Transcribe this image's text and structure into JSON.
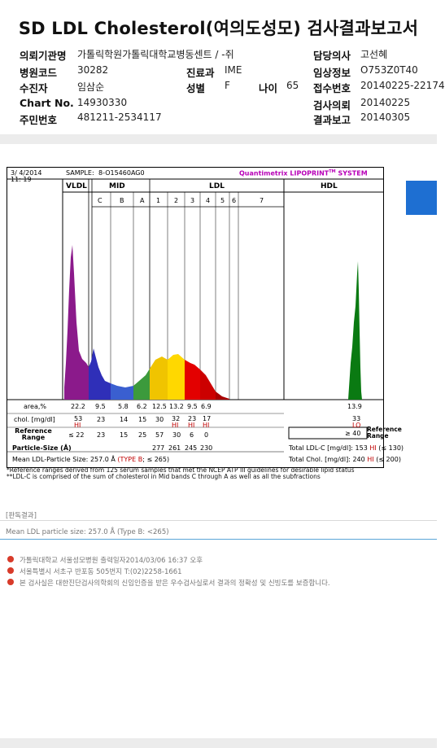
{
  "header": {
    "title": "SD LDL Cholesterol(여의도성모) 검사결과보고서",
    "fields": {
      "institution_label": "의뢰기관명",
      "institution_value": "가톨릭학원가톨릭대학교병동센트 / -쥐",
      "hospital_code_label": "병원코드",
      "hospital_code_value": "30282",
      "department_label": "진료과",
      "department_value": "IME",
      "patient_label": "수진자",
      "patient_value": "임삼순",
      "sex_label": "성별",
      "sex_value": "F",
      "age_label": "나이",
      "age_value": "65",
      "chart_label": "Chart No.",
      "chart_value": "14930330",
      "id_label": "주민번호",
      "id_value": "481211-2534117",
      "doctor_label": "담당의사",
      "doctor_value": "고선혜",
      "clinical_label": "임상정보",
      "clinical_value": "O753Z0T40",
      "receipt_label": "접수번호",
      "receipt_value": "20140225-22174",
      "request_label": "검사의뢰",
      "request_value": "20140225",
      "report_label": "결과보고",
      "report_value": "20140305"
    }
  },
  "report": {
    "date": "3/ 4/2014",
    "time": "11: 19",
    "sample_label": "SAMPLE:",
    "sample_value": "8-O15460AG0",
    "brand": "Quantimetrix LIPOPRINT",
    "brand_tm": "TM",
    "brand_system": "SYSTEM",
    "band_groups": [
      "VLDL",
      "MID",
      "LDL",
      "HDL"
    ],
    "sub_bands": [
      "C",
      "B",
      "A",
      "1",
      "2",
      "3",
      "4",
      "5",
      "6",
      "7"
    ],
    "row_labels": {
      "area": "area,%",
      "chol": "chol. [mg/dl]",
      "ref": "Reference Range",
      "ref_right": "Reference Range",
      "particle": "Particle-Size (Å)",
      "mean": "Mean LDL-Particle Size:",
      "mean_value": "257.0 Å",
      "type": "(TYPE B",
      "type_limit": "; ≤ 265)"
    },
    "area_values": [
      "22.2",
      "9.5",
      "5.8",
      "6.2",
      "12.5",
      "13.2",
      "9.5",
      "6.9",
      "13.9"
    ],
    "chol_values": [
      "53",
      "23",
      "14",
      "15",
      "30",
      "32",
      "23",
      "17",
      "33"
    ],
    "flags": [
      "HI",
      "HI",
      "HI",
      "HI",
      "LO"
    ],
    "ref_values": [
      "≤ 22",
      "23",
      "15",
      "25",
      "57",
      "30",
      "6",
      "0",
      "≥ 40"
    ],
    "particle_values": [
      "277",
      "261",
      "245",
      "230"
    ],
    "total_ldl_label": "Total LDL-C [mg/dl]:",
    "total_ldl_value": "153",
    "total_ldl_flag": "HI",
    "total_ldl_ref": "(≤ 130)",
    "total_chol_label": "Total Chol. [mg/dl]:",
    "total_chol_value": "240",
    "total_chol_flag": "HI",
    "total_chol_ref": "(≤ 200)"
  },
  "notes": {
    "line1": "*Reference ranges derived from 125 serum samples that met the NCEP ATP III guidelines for desirable lipid status",
    "line2": "**LDL-C is comprised of the sum of cholesterol in Mid bands C through A as well as all the subfractions"
  },
  "interpretation": {
    "heading": "[판독결과]",
    "text": "Mean LDL particle size: 257.0 Å (Type B: <265)"
  },
  "footer": {
    "line1": "가톨릭대학교 서울성모병원      출력일자2014/03/06 16:37 오후",
    "line2": "서울특별시 서초구 반포동 505번지 T:(02)2258-1661",
    "line3": "본 검사실은 대한진단검사의학회의 신임인증을 받은 우수검사실로서 결과의 정확성 및 신빙도를 보증합니다."
  },
  "chart_data": {
    "type": "area",
    "title": "",
    "bands": [
      "VLDL",
      "C",
      "B",
      "A",
      "1",
      "2",
      "3",
      "4",
      "5",
      "6",
      "7",
      "HDL"
    ],
    "colors": {
      "vldl": "#8b1a8b",
      "mid": "#2f2fb8",
      "ldl1": "#f0c400",
      "ldl2": "#ffd800",
      "ldl3": "#e30000",
      "hdl": "#0a7a12"
    }
  }
}
